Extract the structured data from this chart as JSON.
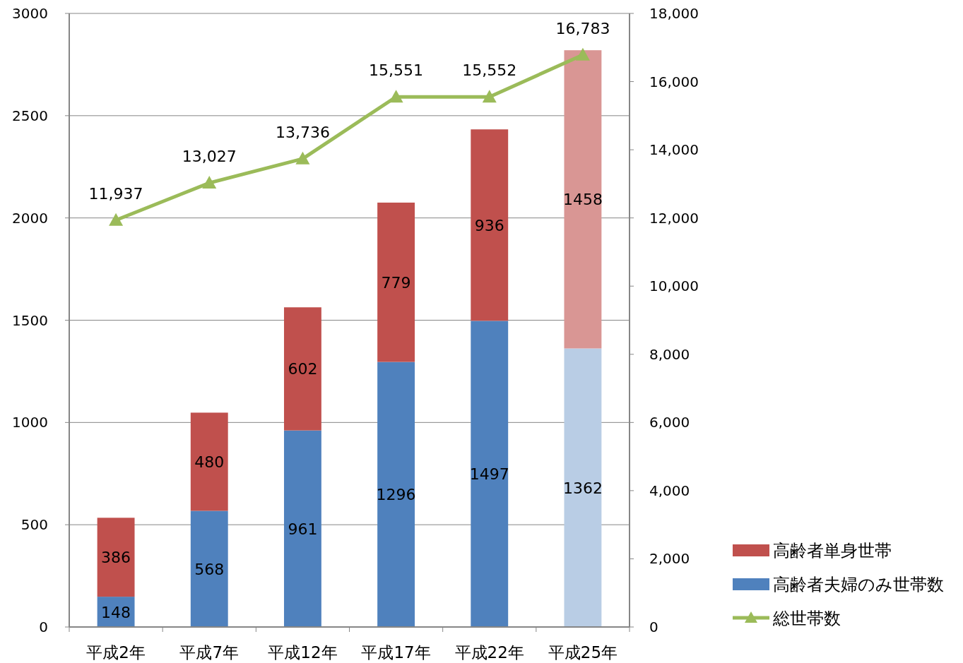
{
  "chart_data": {
    "type": "bar",
    "stacked": true,
    "categories": [
      "平成2年",
      "平成7年",
      "平成12年",
      "平成17年",
      "平成22年",
      "平成25年"
    ],
    "series": [
      {
        "name": "高齢者夫婦のみ世帯数",
        "color": "#4f81bd",
        "colors": [
          "#4f81bd",
          "#4f81bd",
          "#4f81bd",
          "#4f81bd",
          "#4f81bd",
          "#b9cde5"
        ],
        "values": [
          148,
          568,
          961,
          1296,
          1497,
          1362
        ],
        "value_labels": [
          "148",
          "568",
          "961",
          "1296",
          "1497",
          "1362"
        ]
      },
      {
        "name": "高齢者単身世帯",
        "color": "#c0504d",
        "colors": [
          "#c0504d",
          "#c0504d",
          "#c0504d",
          "#c0504d",
          "#c0504d",
          "#d99694"
        ],
        "values": [
          386,
          480,
          602,
          779,
          936,
          1458
        ],
        "value_labels": [
          "386",
          "480",
          "602",
          "779",
          "936",
          "1458"
        ]
      },
      {
        "name": "総世帯数",
        "type": "line",
        "axis": "y2",
        "color": "#9bbb59",
        "marker": "triangle",
        "values": [
          11937,
          13027,
          13736,
          15551,
          15552,
          16783
        ],
        "value_labels": [
          "11,937",
          "13,027",
          "13,736",
          "15,551",
          "15,552",
          "16,783"
        ]
      }
    ],
    "ylim": [
      0,
      3000
    ],
    "yticks": [
      0,
      500,
      1000,
      1500,
      2000,
      2500,
      3000
    ],
    "y2lim": [
      0,
      18000
    ],
    "y2ticks": [
      0,
      {
        "value": 2000,
        "label": "2,000"
      },
      {
        "value": 4000,
        "label": "4,000"
      },
      {
        "value": 6000,
        "label": "6,000"
      },
      {
        "value": 8000,
        "label": "8,000"
      },
      {
        "value": 10000,
        "label": "10,000"
      },
      {
        "value": 12000,
        "label": "12,000"
      },
      {
        "value": 14000,
        "label": "14,000"
      },
      {
        "value": 16000,
        "label": "16,000"
      },
      {
        "value": 18000,
        "label": "18,000"
      }
    ],
    "grid": "y",
    "legend": "bottom right"
  }
}
